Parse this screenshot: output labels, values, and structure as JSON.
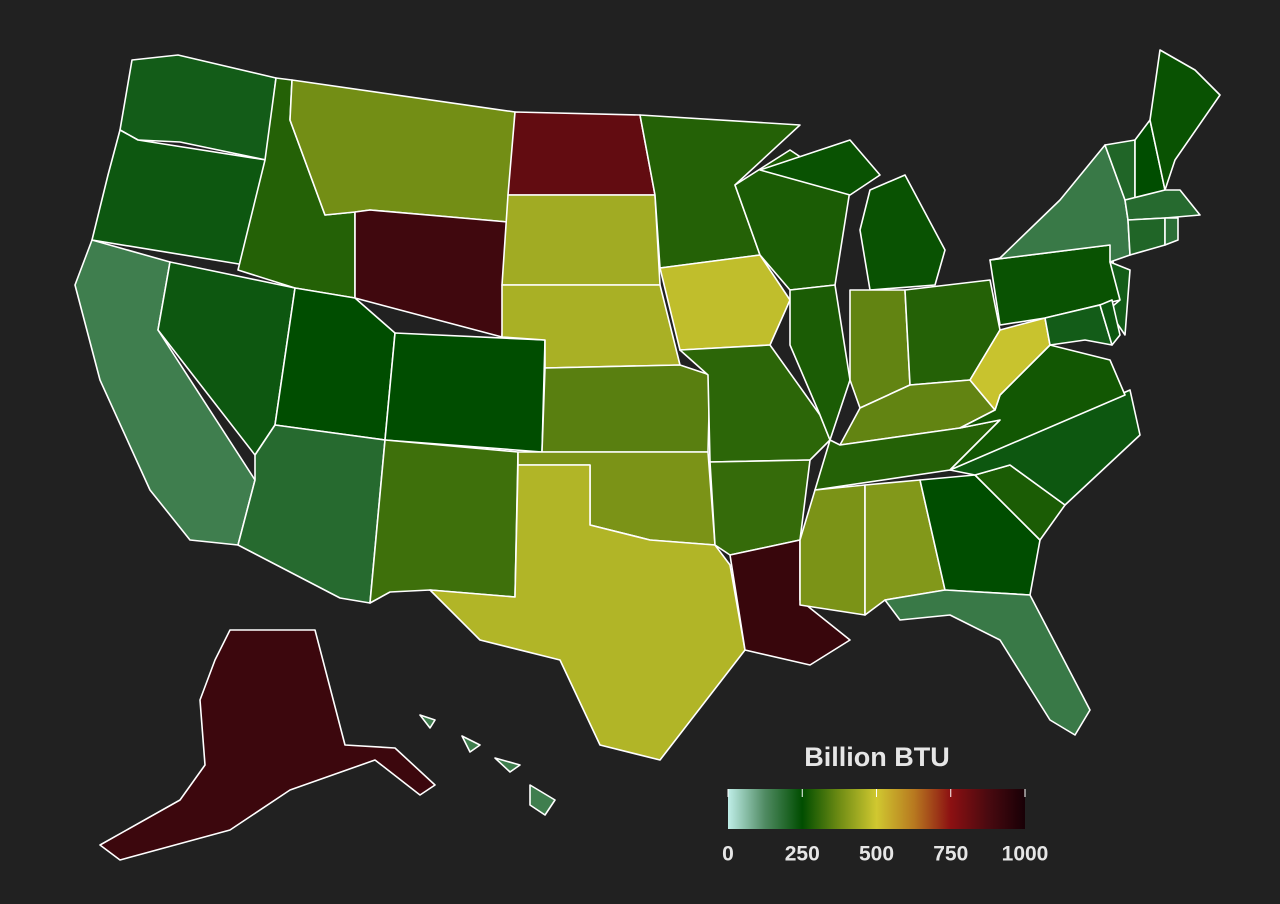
{
  "chart_data": {
    "type": "choropleth",
    "values": [
      220,
      230,
      150,
      230,
      290,
      380,
      900,
      250,
      250,
      190,
      320,
      830,
      440,
      450,
      350,
      390,
      460,
      290,
      480,
      300,
      310,
      920,
      280,
      280,
      260,
      360,
      290,
      360,
      290,
      390,
      400,
      250,
      160,
      280,
      230,
      270,
      490,
      260,
      160,
      220,
      220,
      230,
      200,
      250,
      260,
      190,
      200,
      180,
      910,
      150
    ],
    "colorbar": {
      "title": "Billion BTU",
      "lim": [
        0,
        1000
      ],
      "ticks": [
        0,
        250,
        500,
        750,
        1000
      ],
      "colors": [
        "#bfeee8",
        "#4f8a62",
        "#004d00",
        "#6f8c14",
        "#d0c830",
        "#b87a20",
        "#8c1012",
        "#4a0a10",
        "#180006"
      ]
    },
    "border_color": "#ffffff"
  }
}
